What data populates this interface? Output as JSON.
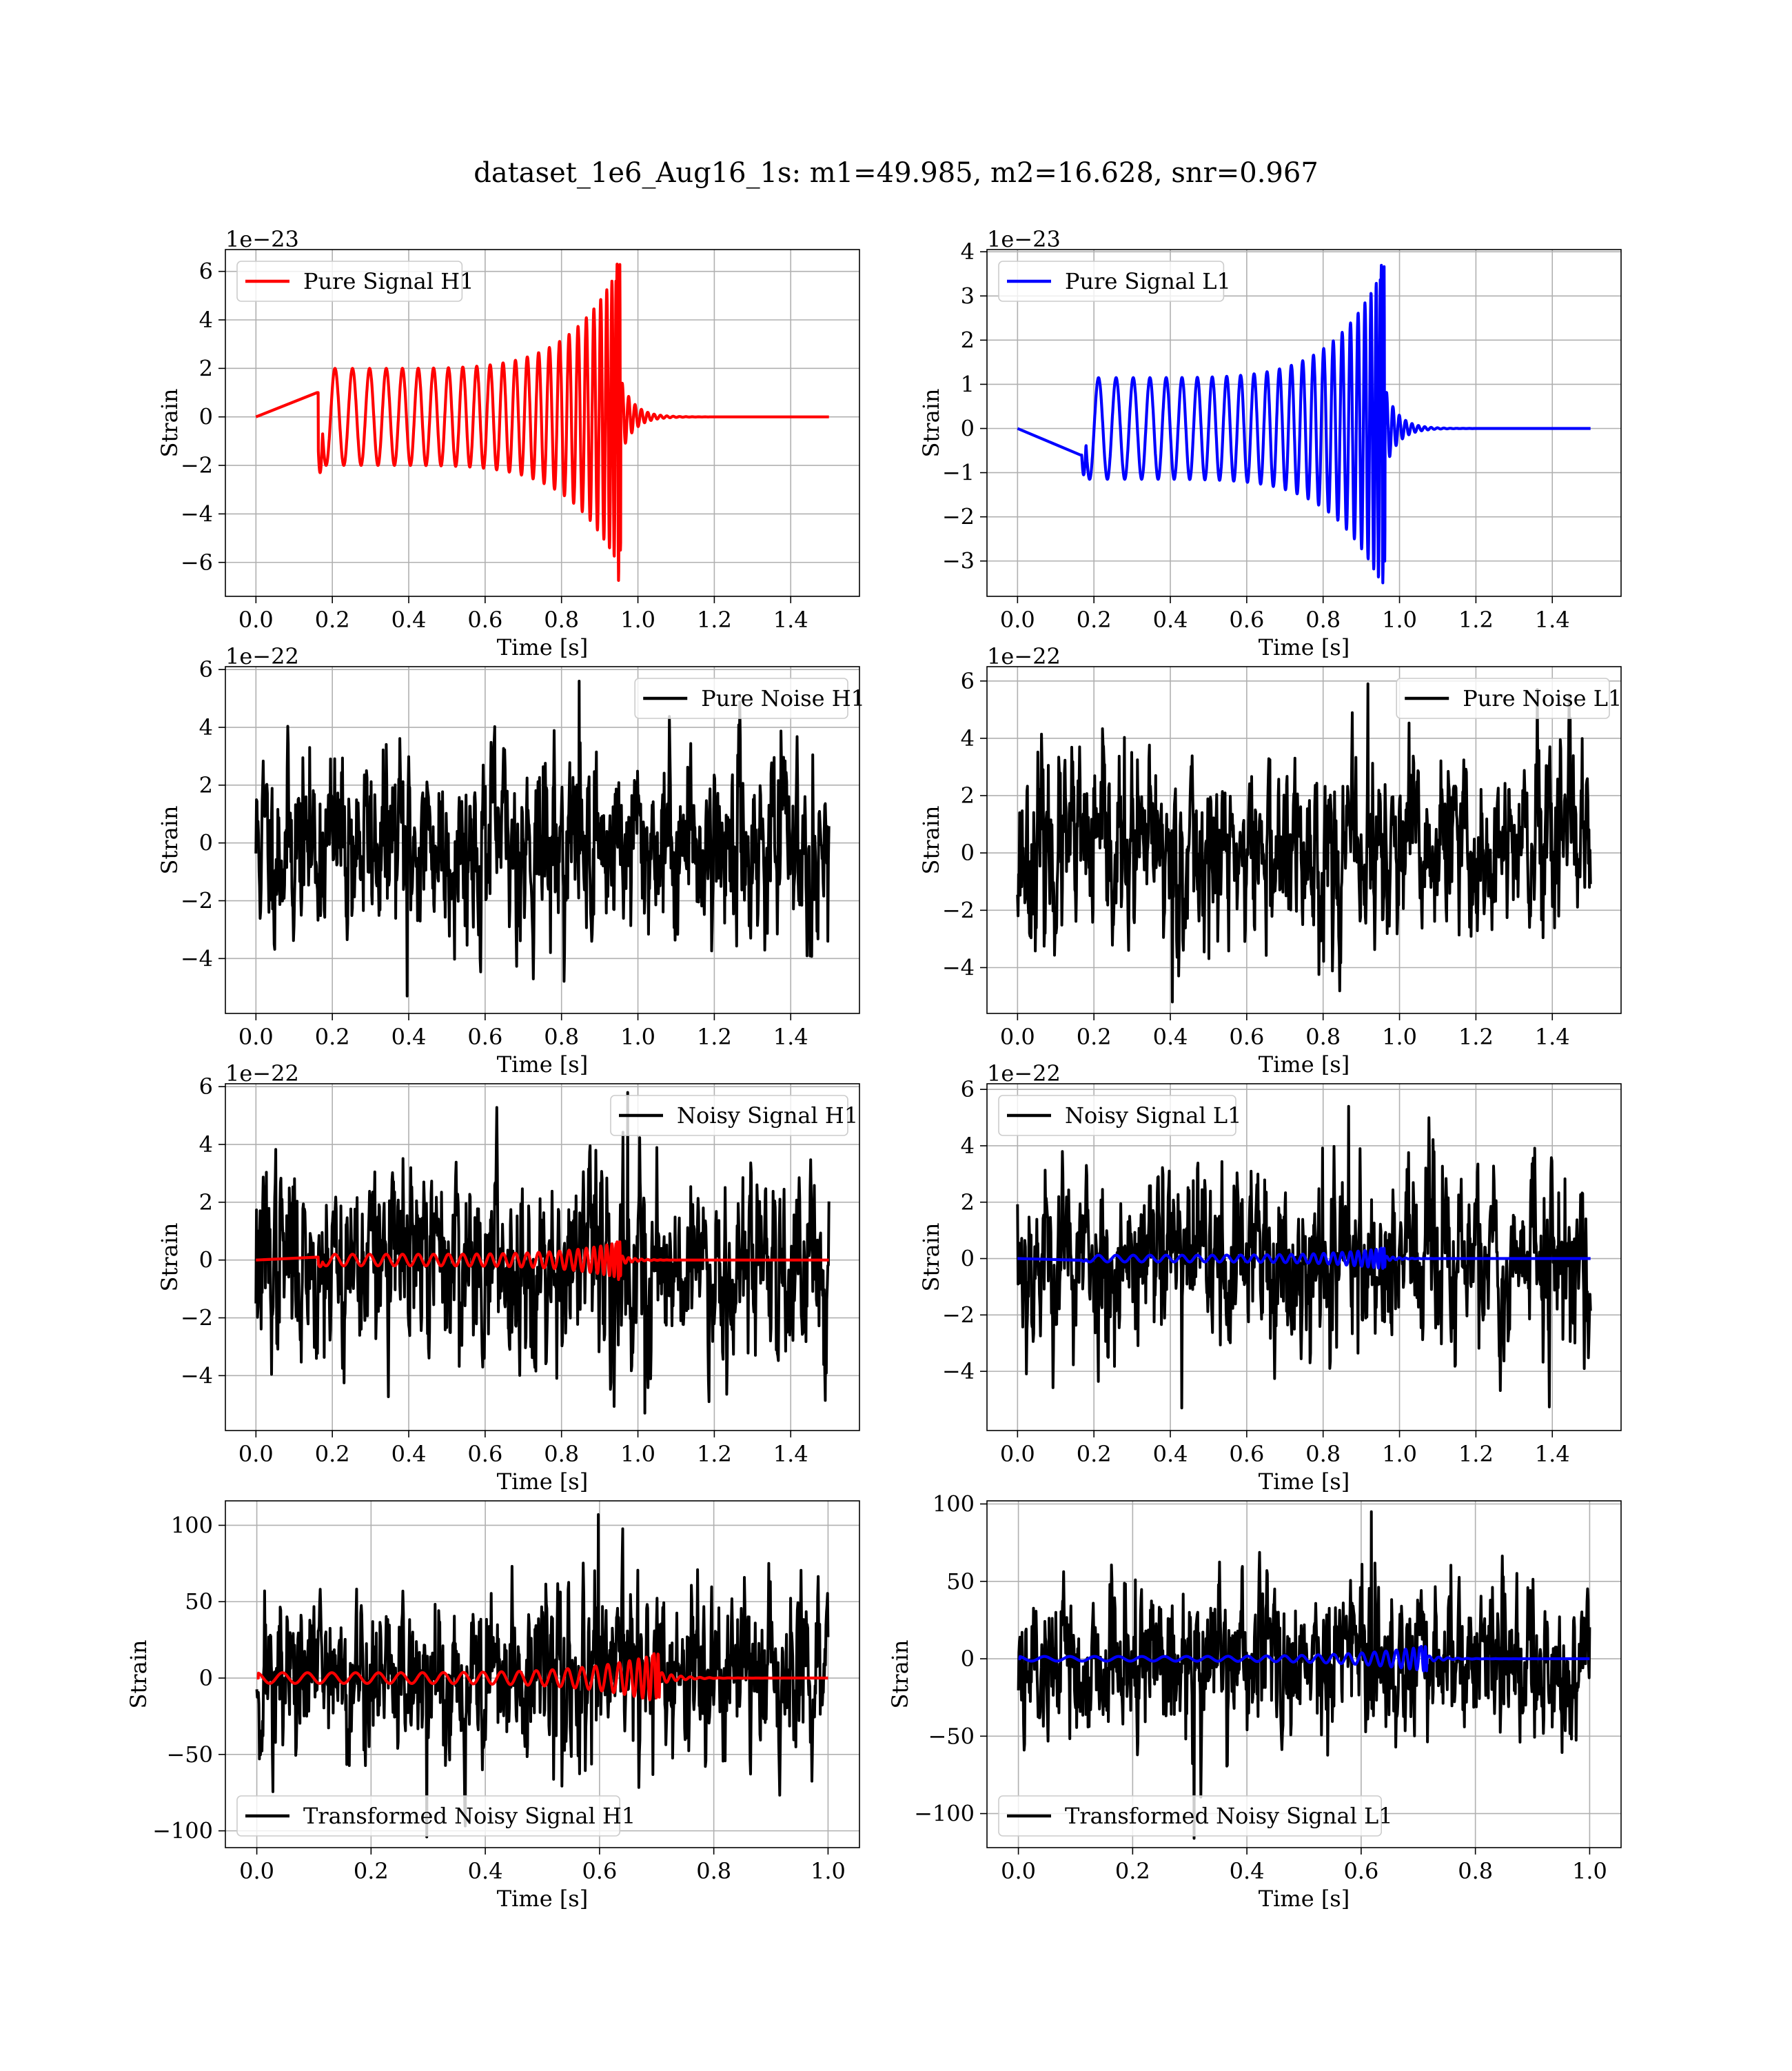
{
  "title": "dataset_1e6_Aug16_1s: m1=49.985, m2=16.628, snr=0.967",
  "colors": {
    "h1_signal": "#ff0000",
    "l1_signal": "#0000ff",
    "noise": "#000000",
    "grid": "#b0b0b0"
  },
  "chart_data": [
    {
      "type": "line",
      "id": "pure-signal-h1",
      "xlabel": "Time [s]",
      "ylabel": "Strain",
      "offset_label": "1e−23",
      "xlim": [
        -0.08,
        1.58
      ],
      "ylim": [
        -7.4,
        6.9
      ],
      "xticks": [
        0.0,
        0.2,
        0.4,
        0.6,
        0.8,
        1.0,
        1.2,
        1.4
      ],
      "xticklabels": [
        "0.0",
        "0.2",
        "0.4",
        "0.6",
        "0.8",
        "1.0",
        "1.2",
        "1.4"
      ],
      "yticks": [
        -6,
        -4,
        -2,
        0,
        2,
        4,
        6
      ],
      "yticklabels": [
        "−6",
        "−4",
        "−2",
        "0",
        "2",
        "4",
        "6"
      ],
      "grid": true,
      "legend_position": "upper left",
      "series": [
        {
          "name": "Pure Signal H1",
          "color": "#ff0000",
          "kind": "chirp",
          "params": {
            "t_start": 0.16,
            "t_merge": 0.955,
            "t_end": 1.5,
            "amp_start": 2.0,
            "amp_peak": 6.3,
            "amp_min_peak": -6.8,
            "start_jump": 1.0,
            "start_dip": -2.3,
            "f_start": 24,
            "phase_cycles": 27
          }
        }
      ]
    },
    {
      "type": "line",
      "id": "pure-signal-l1",
      "xlabel": "Time [s]",
      "ylabel": "Strain",
      "offset_label": "1e−23",
      "xlim": [
        -0.08,
        1.58
      ],
      "ylim": [
        -3.8,
        4.05
      ],
      "xticks": [
        0.0,
        0.2,
        0.4,
        0.6,
        0.8,
        1.0,
        1.2,
        1.4
      ],
      "xticklabels": [
        "0.0",
        "0.2",
        "0.4",
        "0.6",
        "0.8",
        "1.0",
        "1.2",
        "1.4"
      ],
      "yticks": [
        -3,
        -2,
        -1,
        0,
        1,
        2,
        3,
        4
      ],
      "yticklabels": [
        "−3",
        "−2",
        "−1",
        "0",
        "1",
        "2",
        "3",
        "4"
      ],
      "grid": true,
      "legend_position": "upper left",
      "series": [
        {
          "name": "Pure Signal L1",
          "color": "#0000ff",
          "kind": "chirp",
          "params": {
            "t_start": 0.165,
            "t_merge": 0.962,
            "t_end": 1.5,
            "amp_start": 1.15,
            "amp_peak": 3.7,
            "amp_min_peak": -3.5,
            "start_jump": -0.6,
            "start_dip": -1.05,
            "f_start": 24,
            "phase_cycles": 27
          }
        }
      ]
    },
    {
      "type": "line",
      "id": "pure-noise-h1",
      "xlabel": "Time [s]",
      "ylabel": "Strain",
      "offset_label": "1e−22",
      "xlim": [
        -0.08,
        1.58
      ],
      "ylim": [
        -5.9,
        6.1
      ],
      "xticks": [
        0.0,
        0.2,
        0.4,
        0.6,
        0.8,
        1.0,
        1.2,
        1.4
      ],
      "xticklabels": [
        "0.0",
        "0.2",
        "0.4",
        "0.6",
        "0.8",
        "1.0",
        "1.2",
        "1.4"
      ],
      "yticks": [
        -4,
        -2,
        0,
        2,
        4,
        6
      ],
      "yticklabels": [
        "−4",
        "−2",
        "0",
        "2",
        "4",
        "6"
      ],
      "grid": true,
      "legend_position": "upper right",
      "series": [
        {
          "name": "Pure Noise H1",
          "color": "#000000",
          "kind": "noise",
          "params": {
            "t_start": 0.0,
            "t_end": 1.5,
            "sigma": 1.55,
            "max": 5.6,
            "min": -5.3,
            "seed": 11
          }
        }
      ]
    },
    {
      "type": "line",
      "id": "pure-noise-l1",
      "xlabel": "Time [s]",
      "ylabel": "Strain",
      "offset_label": "1e−22",
      "xlim": [
        -0.08,
        1.58
      ],
      "ylim": [
        -5.6,
        6.5
      ],
      "xticks": [
        0.0,
        0.2,
        0.4,
        0.6,
        0.8,
        1.0,
        1.2,
        1.4
      ],
      "xticklabels": [
        "0.0",
        "0.2",
        "0.4",
        "0.6",
        "0.8",
        "1.0",
        "1.2",
        "1.4"
      ],
      "yticks": [
        -4,
        -2,
        0,
        2,
        4,
        6
      ],
      "yticklabels": [
        "−4",
        "−2",
        "0",
        "2",
        "4",
        "6"
      ],
      "grid": true,
      "legend_position": "upper right",
      "series": [
        {
          "name": "Pure Noise L1",
          "color": "#000000",
          "kind": "noise",
          "params": {
            "t_start": 0.0,
            "t_end": 1.5,
            "sigma": 1.55,
            "max": 5.9,
            "min": -5.2,
            "seed": 23
          }
        }
      ]
    },
    {
      "type": "line",
      "id": "noisy-signal-h1",
      "xlabel": "Time [s]",
      "ylabel": "Strain",
      "offset_label": "1e−22",
      "xlim": [
        -0.08,
        1.58
      ],
      "ylim": [
        -5.9,
        6.1
      ],
      "xticks": [
        0.0,
        0.2,
        0.4,
        0.6,
        0.8,
        1.0,
        1.2,
        1.4
      ],
      "xticklabels": [
        "0.0",
        "0.2",
        "0.4",
        "0.6",
        "0.8",
        "1.0",
        "1.2",
        "1.4"
      ],
      "yticks": [
        -4,
        -2,
        0,
        2,
        4,
        6
      ],
      "yticklabels": [
        "−4",
        "−2",
        "0",
        "2",
        "4",
        "6"
      ],
      "grid": true,
      "legend_position": "upper right",
      "series": [
        {
          "name": "Noisy Signal H1",
          "color": "#000000",
          "kind": "noise",
          "params": {
            "t_start": 0.0,
            "t_end": 1.5,
            "sigma": 1.6,
            "max": 5.8,
            "min": -5.3,
            "seed": 37
          }
        },
        {
          "name": "",
          "color": "#ff0000",
          "kind": "chirp",
          "params": {
            "t_start": 0.16,
            "t_merge": 0.955,
            "t_end": 1.5,
            "amp_start": 0.2,
            "amp_peak": 0.63,
            "amp_min_peak": -0.68,
            "start_jump": 0.1,
            "start_dip": -0.23,
            "f_start": 24,
            "phase_cycles": 27
          }
        }
      ]
    },
    {
      "type": "line",
      "id": "noisy-signal-l1",
      "xlabel": "Time [s]",
      "ylabel": "Strain",
      "offset_label": "1e−22",
      "xlim": [
        -0.08,
        1.58
      ],
      "ylim": [
        -6.1,
        6.2
      ],
      "xticks": [
        0.0,
        0.2,
        0.4,
        0.6,
        0.8,
        1.0,
        1.2,
        1.4
      ],
      "xticklabels": [
        "0.0",
        "0.2",
        "0.4",
        "0.6",
        "0.8",
        "1.0",
        "1.2",
        "1.4"
      ],
      "yticks": [
        -4,
        -2,
        0,
        2,
        4,
        6
      ],
      "yticklabels": [
        "−4",
        "−2",
        "0",
        "2",
        "4",
        "6"
      ],
      "grid": true,
      "legend_position": "upper left",
      "series": [
        {
          "name": "Noisy Signal L1",
          "color": "#000000",
          "kind": "noise",
          "params": {
            "t_start": 0.0,
            "t_end": 1.5,
            "sigma": 1.6,
            "max": 5.4,
            "min": -5.3,
            "seed": 53
          }
        },
        {
          "name": "",
          "color": "#0000ff",
          "kind": "chirp",
          "params": {
            "t_start": 0.165,
            "t_merge": 0.962,
            "t_end": 1.5,
            "amp_start": 0.12,
            "amp_peak": 0.37,
            "amp_min_peak": -0.35,
            "start_jump": -0.06,
            "start_dip": -0.1,
            "f_start": 24,
            "phase_cycles": 27
          }
        }
      ]
    },
    {
      "type": "line",
      "id": "transformed-noisy-signal-h1",
      "xlabel": "Time [s]",
      "ylabel": "Strain",
      "offset_label": "",
      "xlim": [
        -0.055,
        1.055
      ],
      "ylim": [
        -111,
        116
      ],
      "xticks": [
        0.0,
        0.2,
        0.4,
        0.6,
        0.8,
        1.0
      ],
      "xticklabels": [
        "0.0",
        "0.2",
        "0.4",
        "0.6",
        "0.8",
        "1.0"
      ],
      "yticks": [
        -100,
        -50,
        0,
        50,
        100
      ],
      "yticklabels": [
        "−100",
        "−50",
        "0",
        "50",
        "100"
      ],
      "grid": true,
      "legend_position": "lower left",
      "series": [
        {
          "name": "Transformed Noisy Signal H1",
          "color": "#000000",
          "kind": "noise",
          "params": {
            "t_start": 0.0,
            "t_end": 1.0,
            "sigma": 27,
            "max": 107,
            "min": -104,
            "seed": 71
          }
        },
        {
          "name": "",
          "color": "#ff0000",
          "kind": "chirp",
          "params": {
            "t_start": 0.0,
            "t_merge": 0.705,
            "t_end": 1.0,
            "amp_start": 3.5,
            "amp_peak": 16,
            "amp_min_peak": -13,
            "start_jump": 0,
            "start_dip": 0,
            "f_start": 22,
            "phase_cycles": 25
          }
        }
      ]
    },
    {
      "type": "line",
      "id": "transformed-noisy-signal-l1",
      "xlabel": "Time [s]",
      "ylabel": "Strain",
      "offset_label": "",
      "xlim": [
        -0.055,
        1.055
      ],
      "ylim": [
        -122,
        102
      ],
      "xticks": [
        0.0,
        0.2,
        0.4,
        0.6,
        0.8,
        1.0
      ],
      "xticklabels": [
        "0.0",
        "0.2",
        "0.4",
        "0.6",
        "0.8",
        "1.0"
      ],
      "yticks": [
        -100,
        -50,
        0,
        50,
        100
      ],
      "yticklabels": [
        "−100",
        "−50",
        "0",
        "50",
        "100"
      ],
      "grid": true,
      "legend_position": "lower left",
      "series": [
        {
          "name": "Transformed Noisy Signal L1",
          "color": "#000000",
          "kind": "noise",
          "params": {
            "t_start": 0.0,
            "t_end": 1.0,
            "sigma": 25,
            "max": 95,
            "min": -116,
            "seed": 89
          }
        },
        {
          "name": "",
          "color": "#0000ff",
          "kind": "chirp",
          "params": {
            "t_start": 0.0,
            "t_merge": 0.715,
            "t_end": 1.0,
            "amp_start": 1.5,
            "amp_peak": 8,
            "amp_min_peak": -8,
            "start_jump": 0,
            "start_dip": 0,
            "f_start": 22,
            "phase_cycles": 25
          }
        }
      ]
    }
  ]
}
